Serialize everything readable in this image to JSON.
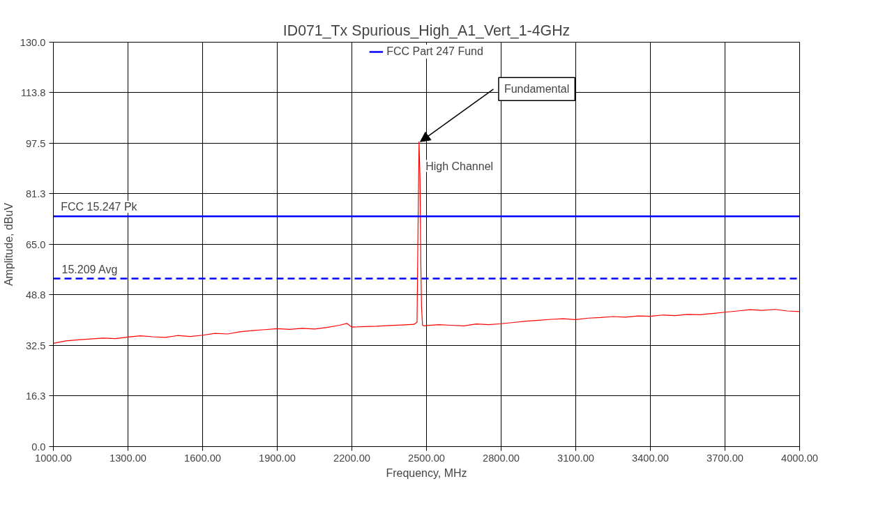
{
  "chart_data": {
    "type": "line",
    "title": "ID071_Tx Spurious_High_A1_Vert_1-4GHz",
    "xlabel": "Frequency, MHz",
    "ylabel": "Amplitude, dBuV",
    "xlim": [
      1000,
      4000
    ],
    "ylim": [
      0,
      130
    ],
    "xticks": [
      {
        "value": 1000,
        "label": "1000.00"
      },
      {
        "value": 1300,
        "label": "1300.00"
      },
      {
        "value": 1600,
        "label": "1600.00"
      },
      {
        "value": 1900,
        "label": "1900.00"
      },
      {
        "value": 2200,
        "label": "2200.00"
      },
      {
        "value": 2500,
        "label": "2500.00"
      },
      {
        "value": 2800,
        "label": "2800.00"
      },
      {
        "value": 3100,
        "label": "3100.00"
      },
      {
        "value": 3400,
        "label": "3400.00"
      },
      {
        "value": 3700,
        "label": "3700.00"
      },
      {
        "value": 4000,
        "label": "4000.00"
      }
    ],
    "yticks": [
      {
        "value": 0,
        "label": "0.0"
      },
      16.3,
      32.5,
      48.8,
      {
        "value": 65,
        "label": "65.0"
      },
      81.3,
      97.5,
      113.8,
      {
        "value": 130,
        "label": "130.0"
      }
    ],
    "grid": true,
    "legend": "top",
    "marker": "none",
    "series": [
      {
        "color": "#ff0000",
        "line_style": "solid",
        "x": [
          1000,
          1050,
          1100,
          1150,
          1200,
          1250,
          1300,
          1350,
          1400,
          1450,
          1500,
          1550,
          1600,
          1650,
          1700,
          1750,
          1800,
          1850,
          1900,
          1950,
          2000,
          2050,
          2100,
          2150,
          2180,
          2200,
          2250,
          2300,
          2350,
          2400,
          2450,
          2462,
          2466,
          2470,
          2474,
          2477,
          2480,
          2484,
          2490,
          2500,
          2550,
          2600,
          2650,
          2700,
          2750,
          2800,
          2850,
          2900,
          2950,
          3000,
          3050,
          3100,
          3150,
          3200,
          3250,
          3300,
          3350,
          3400,
          3450,
          3500,
          3550,
          3600,
          3650,
          3700,
          3750,
          3800,
          3850,
          3900,
          3950,
          4000
        ],
        "values": [
          33.2,
          34.0,
          34.3,
          34.6,
          34.9,
          34.7,
          35.2,
          35.6,
          35.3,
          35.1,
          35.7,
          35.4,
          35.8,
          36.4,
          36.2,
          36.9,
          37.3,
          37.6,
          37.9,
          37.7,
          38.0,
          37.8,
          38.3,
          39.0,
          39.6,
          38.4,
          38.6,
          38.7,
          38.9,
          39.1,
          39.3,
          40.0,
          70.0,
          98.0,
          86.0,
          60.0,
          45.0,
          39.0,
          38.8,
          38.9,
          39.2,
          39.0,
          38.8,
          39.4,
          39.2,
          39.5,
          39.9,
          40.3,
          40.6,
          40.9,
          41.1,
          40.8,
          41.3,
          41.5,
          41.8,
          41.6,
          42.0,
          41.9,
          42.3,
          42.1,
          42.5,
          42.4,
          42.8,
          43.2,
          43.6,
          44.0,
          43.8,
          44.1,
          43.6,
          43.4
        ]
      },
      {
        "name": "FCC Part 247 Fund",
        "color": "#0000ff",
        "line_style": "solid",
        "x": [
          1000,
          4000
        ],
        "values": [
          74,
          74
        ]
      }
    ],
    "ref_lines": [
      {
        "axis": "y",
        "value": 54,
        "label": "15.209 Avg",
        "color": "#0000ff",
        "line_style": "dashed"
      }
    ],
    "annotations": [
      {
        "text": "FCC 15.247 Pk",
        "x": 1030,
        "y": 74
      },
      {
        "text": "Fundamental",
        "x": 2475,
        "y": 98
      },
      "High Channel"
    ]
  }
}
